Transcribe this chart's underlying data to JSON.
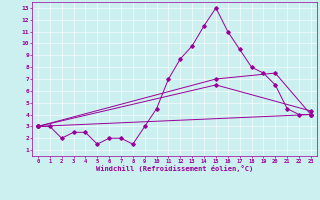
{
  "xlabel": "Windchill (Refroidissement éolien,°C)",
  "bg_color": "#ccefef",
  "line_color": "#990099",
  "xlim": [
    -0.5,
    23.5
  ],
  "ylim": [
    0.5,
    13.5
  ],
  "xticks": [
    0,
    1,
    2,
    3,
    4,
    5,
    6,
    7,
    8,
    9,
    10,
    11,
    12,
    13,
    14,
    15,
    16,
    17,
    18,
    19,
    20,
    21,
    22,
    23
  ],
  "yticks": [
    1,
    2,
    3,
    4,
    5,
    6,
    7,
    8,
    9,
    10,
    11,
    12,
    13
  ],
  "series1_x": [
    0,
    1,
    2,
    3,
    4,
    5,
    6,
    7,
    8,
    9,
    10,
    11,
    12,
    13,
    14,
    15,
    16,
    17,
    18,
    19,
    20,
    21,
    22,
    23
  ],
  "series1_y": [
    3,
    3,
    2,
    2.5,
    2.5,
    1.5,
    2,
    2,
    1.5,
    3,
    4.5,
    7,
    8.7,
    9.8,
    11.5,
    13,
    11,
    9.5,
    8,
    7.5,
    6.5,
    4.5,
    4,
    4
  ],
  "series2_x": [
    0,
    15,
    20,
    23
  ],
  "series2_y": [
    3,
    7,
    7.5,
    4
  ],
  "series3_x": [
    0,
    15,
    23
  ],
  "series3_y": [
    3,
    6.5,
    4.3
  ],
  "series4_x": [
    0,
    23
  ],
  "series4_y": [
    3,
    4
  ]
}
